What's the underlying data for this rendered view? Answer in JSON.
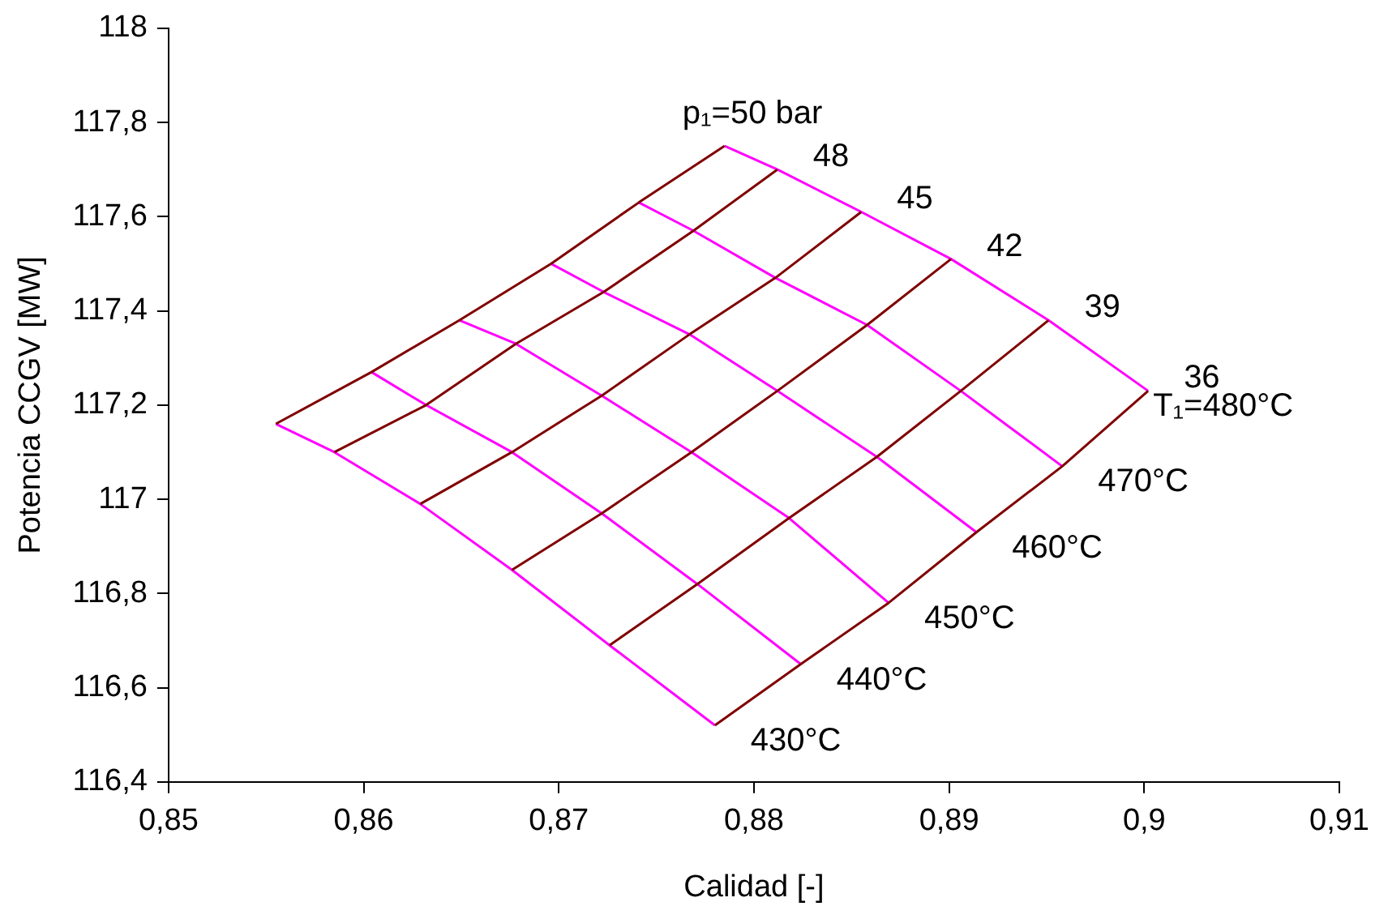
{
  "chart_data": {
    "type": "line",
    "xlabel": "Calidad [-]",
    "ylabel": "Potencia CCGV [MW]",
    "xlim": [
      0.85,
      0.91
    ],
    "xticks": [
      {
        "value": 0.85,
        "label": "0,85"
      },
      {
        "value": 0.86,
        "label": "0,86"
      },
      {
        "value": 0.87,
        "label": "0,87"
      },
      {
        "value": 0.88,
        "label": "0,88"
      },
      {
        "value": 0.89,
        "label": "0,89"
      },
      {
        "value": 0.9,
        "label": "0,9"
      },
      {
        "value": 0.91,
        "label": "0,91"
      }
    ],
    "ylim": [
      116.4,
      118
    ],
    "yticks": [
      {
        "value": 116.4,
        "label": "116,4"
      },
      {
        "value": 116.6,
        "label": "116,6"
      },
      {
        "value": 116.8,
        "label": "116,8"
      },
      117,
      {
        "value": 117.2,
        "label": "117,2"
      },
      {
        "value": 117.4,
        "label": "117,4"
      },
      {
        "value": 117.6,
        "label": "117,6"
      },
      {
        "value": 117.8,
        "label": "117,8"
      },
      118
    ],
    "grid": false,
    "legend": false,
    "marker": "none",
    "line_style": "solid",
    "series": [
      {
        "name": "p₁=50 bar",
        "color": "#800000",
        "x": [
          0.8785,
          0.8741,
          0.8696,
          0.8649,
          0.8604,
          0.8555
        ],
        "values": [
          117.75,
          117.63,
          117.5,
          117.38,
          117.27,
          117.16
        ]
      },
      {
        "name": "48",
        "color": "#800000",
        "x": [
          0.8812,
          0.8769,
          0.8723,
          0.8678,
          0.8632,
          0.8585
        ],
        "values": [
          117.7,
          117.57,
          117.44,
          117.33,
          117.2,
          117.1
        ]
      },
      {
        "name": "45",
        "color": "#800000",
        "x": [
          0.8855,
          0.8811,
          0.8767,
          0.8722,
          0.8676,
          0.8629
        ],
        "values": [
          117.61,
          117.47,
          117.35,
          117.22,
          117.1,
          116.99
        ]
      },
      {
        "name": "42",
        "color": "#800000",
        "x": [
          0.8901,
          0.8858,
          0.8812,
          0.8768,
          0.8722,
          0.8676
        ],
        "values": [
          117.51,
          117.37,
          117.23,
          117.1,
          116.97,
          116.85
        ]
      },
      {
        "name": "39",
        "color": "#800000",
        "x": [
          0.8951,
          0.8906,
          0.8863,
          0.8818,
          0.8771,
          0.8726
        ],
        "values": [
          117.38,
          117.23,
          117.09,
          116.96,
          116.82,
          116.69
        ]
      },
      {
        "name": "36",
        "color": "#800000",
        "x": [
          0.9002,
          0.8958,
          0.8914,
          0.8869,
          0.8824,
          0.878
        ],
        "values": [
          117.23,
          117.07,
          116.93,
          116.78,
          116.65,
          116.52
        ]
      },
      {
        "name": "T₁=480°C",
        "color": "#ff00ff",
        "x": [
          0.8785,
          0.8812,
          0.8855,
          0.8901,
          0.8951,
          0.9002
        ],
        "values": [
          117.75,
          117.7,
          117.61,
          117.51,
          117.38,
          117.23
        ]
      },
      {
        "name": "470°C",
        "color": "#ff00ff",
        "x": [
          0.8741,
          0.8769,
          0.8811,
          0.8858,
          0.8906,
          0.8958
        ],
        "values": [
          117.63,
          117.57,
          117.47,
          117.37,
          117.23,
          117.07
        ]
      },
      {
        "name": "460°C",
        "color": "#ff00ff",
        "x": [
          0.8696,
          0.8723,
          0.8767,
          0.8812,
          0.8863,
          0.8914
        ],
        "values": [
          117.5,
          117.44,
          117.35,
          117.23,
          117.09,
          116.93
        ]
      },
      {
        "name": "450°C",
        "color": "#ff00ff",
        "x": [
          0.8649,
          0.8678,
          0.8722,
          0.8768,
          0.8818,
          0.8869
        ],
        "values": [
          117.38,
          117.33,
          117.22,
          117.1,
          116.96,
          116.78
        ]
      },
      {
        "name": "440°C",
        "color": "#ff00ff",
        "x": [
          0.8604,
          0.8632,
          0.8676,
          0.8722,
          0.8771,
          0.8824
        ],
        "values": [
          117.27,
          117.2,
          117.1,
          116.97,
          116.82,
          116.65
        ]
      },
      {
        "name": "430°C",
        "color": "#ff00ff",
        "x": [
          0.8555,
          0.8585,
          0.8629,
          0.8676,
          0.8726,
          0.878
        ],
        "values": [
          117.16,
          117.1,
          116.99,
          116.85,
          116.69,
          116.52
        ]
      }
    ]
  }
}
